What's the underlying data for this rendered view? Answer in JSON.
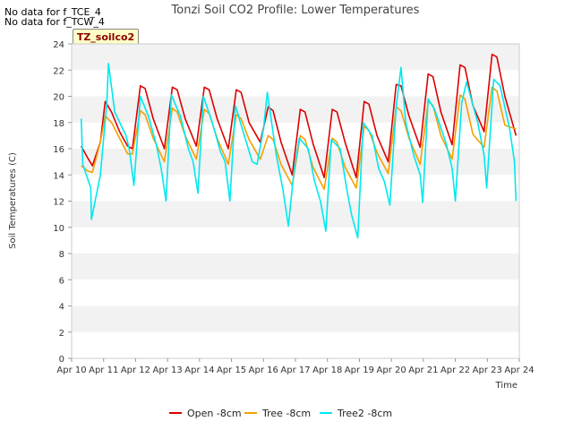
{
  "no_data_lines": [
    "No data for f_TCE_4",
    "No data for f_TCW_4"
  ],
  "badge_label": "TZ_soilco2",
  "chart_data": {
    "type": "line",
    "title": "Tonzi Soil CO2 Profile: Lower Temperatures",
    "xlabel": "Time",
    "ylabel": "Soil Temperatures (C)",
    "xlim": [
      10,
      24
    ],
    "ylim": [
      0,
      24
    ],
    "x_ticks": [
      10,
      11,
      12,
      13,
      14,
      15,
      16,
      17,
      18,
      19,
      20,
      21,
      22,
      23,
      24
    ],
    "x_tick_labels": [
      "Apr 10",
      "Apr 11",
      "Apr 12",
      "Apr 13",
      "Apr 14",
      "Apr 15",
      "Apr 16",
      "Apr 17",
      "Apr 18",
      "Apr 19",
      "Apr 20",
      "Apr 21",
      "Apr 22",
      "Apr 23",
      "Apr 24"
    ],
    "y_ticks": [
      0,
      2,
      4,
      6,
      8,
      10,
      12,
      14,
      16,
      18,
      20,
      22,
      24
    ],
    "y_tick_labels": [
      "0",
      "2",
      "4",
      "6",
      "8",
      "10",
      "12",
      "14",
      "16",
      "18",
      "20",
      "22",
      "24"
    ],
    "legend_position": "bottom-center",
    "series": [
      {
        "name": "Open -8cm",
        "color": "#dd0000",
        "x": [
          10.3,
          10.5,
          10.65,
          10.9,
          11.05,
          11.25,
          11.5,
          11.75,
          11.9,
          12.15,
          12.3,
          12.55,
          12.9,
          13.15,
          13.3,
          13.55,
          13.9,
          14.15,
          14.3,
          14.55,
          14.9,
          15.15,
          15.3,
          15.55,
          15.9,
          16.15,
          16.3,
          16.55,
          16.9,
          17.15,
          17.3,
          17.55,
          17.9,
          18.15,
          18.3,
          18.55,
          18.9,
          19.15,
          19.3,
          19.55,
          19.9,
          20.15,
          20.3,
          20.55,
          20.9,
          21.15,
          21.3,
          21.55,
          21.9,
          22.15,
          22.3,
          22.55,
          22.9,
          23.15,
          23.3,
          23.55,
          23.9
        ],
        "values": [
          16.2,
          15.3,
          14.7,
          16.5,
          19.6,
          18.8,
          17.3,
          16.2,
          16.0,
          20.8,
          20.6,
          18.3,
          16.0,
          20.7,
          20.5,
          18.3,
          16.2,
          20.7,
          20.5,
          18.3,
          16.0,
          20.5,
          20.3,
          18.0,
          16.5,
          19.2,
          18.9,
          16.5,
          14.0,
          19.0,
          18.8,
          16.4,
          13.8,
          19.0,
          18.8,
          16.5,
          13.8,
          19.6,
          19.4,
          17.0,
          15.0,
          20.9,
          20.8,
          18.5,
          16.1,
          21.7,
          21.5,
          18.8,
          16.3,
          22.4,
          22.2,
          19.3,
          17.3,
          23.2,
          23.0,
          20.0,
          17.0
        ]
      },
      {
        "name": "Tree -8cm",
        "color": "#f5a000",
        "x": [
          10.3,
          10.5,
          10.65,
          10.9,
          11.05,
          11.25,
          11.5,
          11.75,
          11.9,
          12.15,
          12.3,
          12.55,
          12.9,
          13.15,
          13.3,
          13.55,
          13.9,
          14.15,
          14.3,
          14.55,
          14.9,
          15.15,
          15.3,
          15.55,
          15.9,
          16.15,
          16.3,
          16.55,
          16.9,
          17.15,
          17.3,
          17.55,
          17.9,
          18.15,
          18.3,
          18.55,
          18.9,
          19.15,
          19.3,
          19.55,
          19.9,
          20.15,
          20.3,
          20.55,
          20.9,
          21.15,
          21.3,
          21.55,
          21.9,
          22.15,
          22.3,
          22.55,
          22.9,
          23.15,
          23.3,
          23.55,
          23.9
        ],
        "values": [
          14.7,
          14.3,
          14.2,
          16.5,
          18.5,
          18.0,
          16.8,
          15.6,
          15.6,
          18.9,
          18.6,
          16.8,
          15.0,
          19.1,
          18.8,
          17.0,
          15.2,
          19.0,
          18.7,
          16.8,
          14.8,
          18.6,
          18.3,
          16.7,
          15.2,
          17.0,
          16.7,
          14.8,
          13.2,
          17.0,
          16.7,
          14.6,
          12.9,
          16.8,
          16.5,
          14.6,
          13.0,
          17.7,
          17.4,
          15.7,
          14.1,
          19.2,
          18.9,
          16.8,
          14.8,
          19.6,
          19.3,
          17.0,
          15.2,
          20.1,
          19.8,
          17.1,
          16.1,
          20.7,
          20.4,
          17.8,
          17.5
        ]
      },
      {
        "name": "Tree2 -8cm",
        "color": "#00e8f0",
        "x": [
          10.3,
          10.35,
          10.6,
          10.62,
          10.9,
          11.1,
          11.15,
          11.35,
          11.7,
          11.8,
          11.95,
          12.15,
          12.4,
          12.65,
          12.8,
          12.95,
          13.12,
          13.4,
          13.65,
          13.8,
          13.95,
          14.12,
          14.4,
          14.65,
          14.8,
          14.95,
          15.12,
          15.4,
          15.65,
          15.8,
          16.0,
          16.12,
          16.4,
          16.6,
          16.78,
          16.95,
          17.12,
          17.4,
          17.6,
          17.78,
          17.95,
          18.12,
          18.4,
          18.6,
          18.75,
          18.95,
          19.12,
          19.4,
          19.6,
          19.78,
          19.95,
          20.15,
          20.3,
          20.45,
          20.7,
          20.9,
          20.98,
          21.15,
          21.35,
          21.7,
          21.9,
          22.0,
          22.2,
          22.35,
          22.7,
          22.9,
          22.98,
          23.2,
          23.4,
          23.7,
          23.85,
          23.9
        ],
        "values": [
          18.3,
          14.8,
          13.0,
          10.6,
          14.0,
          19.5,
          22.5,
          18.8,
          17.0,
          16.0,
          13.2,
          20.0,
          18.5,
          16.3,
          14.5,
          12.0,
          20.1,
          18.5,
          16.0,
          15.0,
          12.6,
          20.0,
          18.0,
          15.8,
          15.0,
          12.0,
          19.3,
          17.0,
          15.0,
          14.8,
          17.5,
          20.3,
          15.5,
          13.0,
          10.1,
          14.2,
          16.8,
          16.0,
          13.5,
          12.0,
          9.7,
          16.7,
          16.0,
          13.0,
          11.0,
          9.2,
          18.0,
          17.0,
          14.5,
          13.5,
          11.7,
          19.2,
          22.2,
          18.0,
          15.5,
          14.0,
          11.9,
          19.8,
          19.0,
          16.5,
          14.5,
          12.0,
          19.5,
          21.1,
          18.0,
          15.5,
          13.0,
          21.3,
          20.8,
          17.5,
          15.0,
          12.0
        ]
      }
    ]
  }
}
